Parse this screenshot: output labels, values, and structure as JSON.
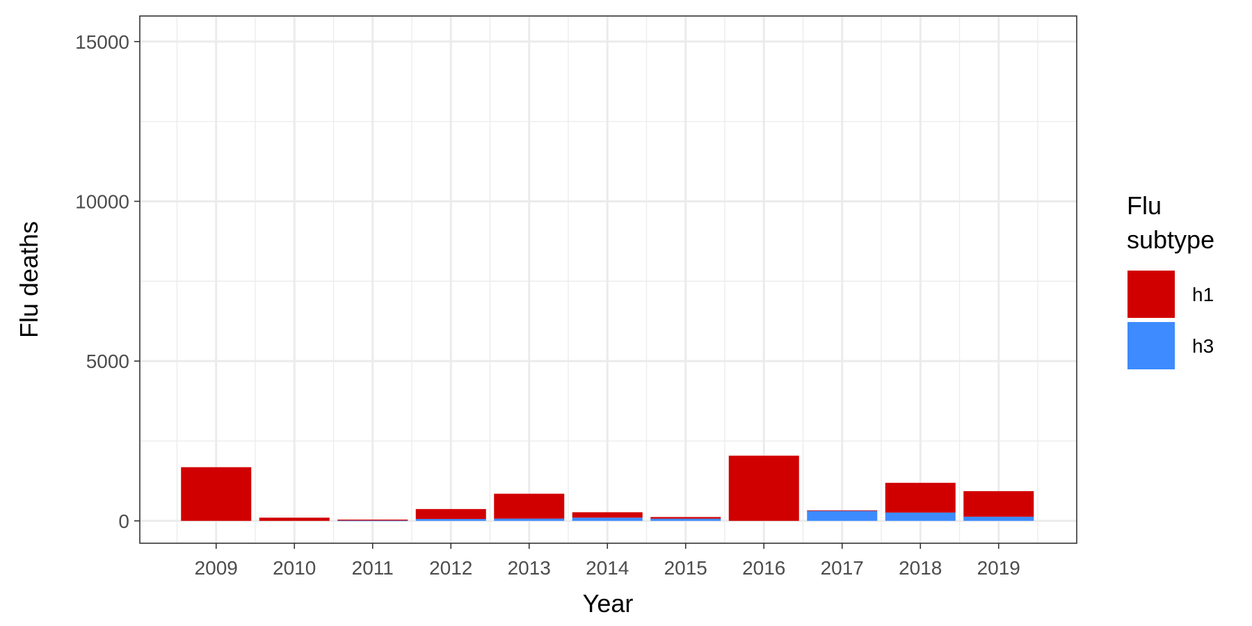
{
  "chart_data": {
    "type": "bar",
    "stacked": true,
    "categories": [
      "2009",
      "2010",
      "2011",
      "2012",
      "2013",
      "2014",
      "2015",
      "2016",
      "2017",
      "2018",
      "2019"
    ],
    "series": [
      {
        "name": "h1",
        "color": "#d10000",
        "values": [
          1680,
          100,
          30,
          310,
          780,
          170,
          50,
          2040,
          20,
          930,
          800
        ]
      },
      {
        "name": "h3",
        "color": "#3d8bff",
        "values": [
          0,
          0,
          10,
          60,
          70,
          100,
          70,
          0,
          310,
          260,
          130
        ]
      }
    ],
    "xlabel": "Year",
    "ylabel": "Flu deaths",
    "ylim": [
      -700,
      15800
    ],
    "yticks": [
      0,
      5000,
      10000,
      15000
    ],
    "grid": true,
    "legend": {
      "title_lines": [
        "Flu",
        "subtype"
      ],
      "position": "right"
    }
  }
}
